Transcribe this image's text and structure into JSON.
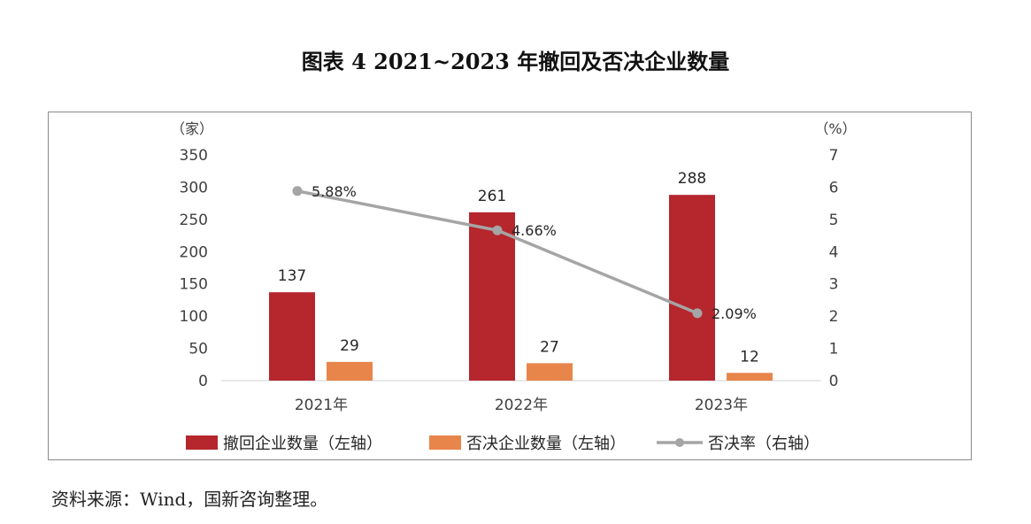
{
  "page_title": "图表 4  2021~2023 年撤回及否决企业数量",
  "source_note": "资料来源：Wind，国新咨询整理。",
  "colors": {
    "withdrawn": "#B5262D",
    "rejected": "#E8854A",
    "rate": "#A5A5A5"
  },
  "chart_data": {
    "type": "bar",
    "title": "图表 4  2021~2023 年撤回及否决企业数量",
    "categories": [
      "2021年",
      "2022年",
      "2023年"
    ],
    "left_axis": {
      "unit": "（家）",
      "ylim": [
        0,
        350
      ],
      "ticks": [
        "0",
        "50",
        "100",
        "150",
        "200",
        "250",
        "300",
        "350"
      ]
    },
    "right_axis": {
      "unit": "（%）",
      "ylim": [
        0,
        7
      ],
      "ticks": [
        "0",
        "1",
        "2",
        "3",
        "4",
        "5",
        "6",
        "7"
      ]
    },
    "series": [
      {
        "name": "撤回企业数量（左轴）",
        "type": "bar",
        "axis": "left",
        "values": [
          137,
          261,
          288
        ],
        "labels": [
          "137",
          "261",
          "288"
        ]
      },
      {
        "name": "否决企业数量（左轴）",
        "type": "bar",
        "axis": "left",
        "values": [
          29,
          27,
          12
        ],
        "labels": [
          "29",
          "27",
          "12"
        ]
      },
      {
        "name": "否决率（右轴）",
        "type": "line",
        "axis": "right",
        "values": [
          5.88,
          4.66,
          2.09
        ],
        "labels": [
          "5.88%",
          "4.66%",
          "2.09%"
        ]
      }
    ],
    "grid": false,
    "legend_position": "bottom"
  }
}
